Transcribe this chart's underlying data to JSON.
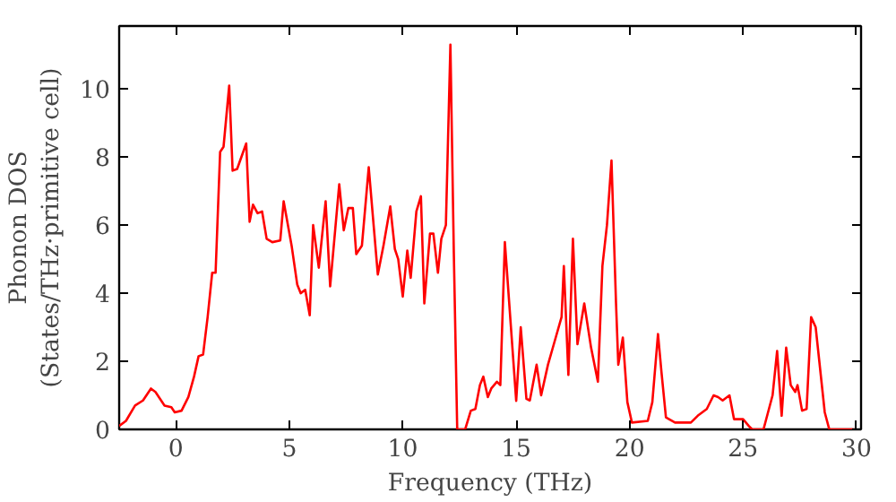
{
  "chart_data": {
    "type": "line",
    "xlabel": "Frequency (THz)",
    "ylabel": "Phonon DOS\n(States/THz·primitive cell)",
    "xlim": [
      -2.5,
      30.2
    ],
    "ylim": [
      0,
      11.85
    ],
    "xticks": [
      0,
      5,
      10,
      15,
      20,
      25,
      30
    ],
    "yticks": [
      0,
      2,
      4,
      6,
      8,
      10
    ],
    "grid": false,
    "series": [
      {
        "color": "#ff0000",
        "x": [
          -2.5,
          -2.2,
          -1.8,
          -1.45,
          -1.1,
          -0.9,
          -0.5,
          -0.2,
          -0.05,
          0.25,
          0.55,
          0.8,
          1.0,
          1.2,
          1.4,
          1.6,
          1.75,
          1.95,
          2.1,
          2.35,
          2.5,
          2.7,
          3.1,
          3.25,
          3.4,
          3.6,
          3.8,
          4.0,
          4.25,
          4.6,
          4.75,
          5.1,
          5.35,
          5.5,
          5.7,
          5.9,
          6.05,
          6.3,
          6.6,
          6.8,
          7.2,
          7.4,
          7.6,
          7.8,
          7.95,
          8.2,
          8.5,
          8.9,
          9.15,
          9.45,
          9.65,
          9.8,
          10.0,
          10.2,
          10.35,
          10.6,
          10.8,
          10.95,
          11.2,
          11.35,
          11.55,
          11.7,
          11.9,
          12.1,
          12.25,
          12.4,
          12.75,
          13.0,
          13.2,
          13.4,
          13.55,
          13.75,
          13.9,
          14.15,
          14.3,
          14.5,
          15.0,
          15.2,
          15.45,
          15.6,
          15.9,
          16.1,
          16.4,
          16.7,
          17.0,
          17.1,
          17.3,
          17.5,
          17.7,
          18.0,
          18.3,
          18.6,
          18.8,
          19.0,
          19.2,
          19.4,
          19.5,
          19.7,
          19.9,
          20.1,
          20.8,
          21.0,
          21.25,
          21.4,
          21.6,
          22.0,
          22.7,
          23.0,
          23.4,
          23.7,
          23.9,
          24.1,
          24.4,
          24.6,
          25.0,
          25.25,
          25.4,
          25.9,
          26.3,
          26.5,
          26.7,
          26.9,
          27.1,
          27.3,
          27.4,
          27.6,
          27.8,
          28.0,
          28.2,
          28.6,
          28.8,
          29.9
        ],
        "values": [
          0.1,
          0.25,
          0.7,
          0.85,
          1.2,
          1.1,
          0.7,
          0.65,
          0.5,
          0.55,
          0.95,
          1.55,
          2.15,
          2.2,
          3.3,
          4.6,
          4.6,
          8.15,
          8.3,
          10.1,
          7.6,
          7.65,
          8.4,
          6.1,
          6.6,
          6.35,
          6.4,
          5.6,
          5.5,
          5.55,
          6.7,
          5.4,
          4.25,
          4.0,
          4.1,
          3.35,
          6.0,
          4.75,
          6.7,
          4.2,
          7.2,
          5.85,
          6.5,
          6.5,
          5.15,
          5.4,
          7.7,
          4.55,
          5.4,
          6.55,
          5.3,
          5.0,
          3.9,
          5.25,
          4.45,
          6.4,
          6.85,
          3.7,
          5.75,
          5.75,
          4.6,
          5.6,
          6.0,
          11.3,
          5.2,
          0,
          0,
          0.55,
          0.6,
          1.3,
          1.55,
          0.95,
          1.2,
          1.4,
          1.3,
          5.5,
          0.84,
          3.0,
          0.9,
          0.85,
          1.9,
          1.0,
          1.9,
          2.6,
          3.3,
          4.8,
          1.6,
          5.6,
          2.5,
          3.7,
          2.4,
          1.4,
          4.8,
          6.0,
          7.9,
          3.7,
          1.9,
          2.7,
          0.8,
          0.2,
          0.25,
          0.8,
          2.8,
          1.7,
          0.35,
          0.2,
          0.2,
          0.4,
          0.6,
          1.0,
          0.95,
          0.85,
          1.0,
          0.3,
          0.3,
          0.1,
          0,
          0,
          1.0,
          2.3,
          0.4,
          2.4,
          1.3,
          1.1,
          1.3,
          0.55,
          0.6,
          3.3,
          3.0,
          0.5,
          0,
          0
        ]
      }
    ]
  }
}
